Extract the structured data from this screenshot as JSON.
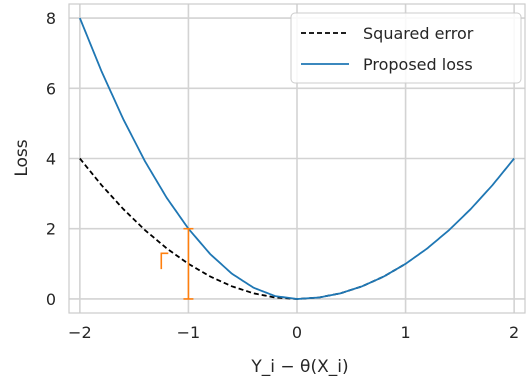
{
  "chart_data": {
    "type": "line",
    "xlabel": "Y_i − θ(X_i)",
    "ylabel": "Loss",
    "xlim": [
      -2.1,
      2.1
    ],
    "ylim": [
      -0.4,
      8.4
    ],
    "xticks": [
      -2,
      -1,
      0,
      1,
      2
    ],
    "xtick_labels": [
      "−2",
      "−1",
      "0",
      "1",
      "2"
    ],
    "yticks": [
      0,
      2,
      4,
      6,
      8
    ],
    "ytick_labels": [
      "0",
      "2",
      "4",
      "6",
      "8"
    ],
    "grid": true,
    "legend_position": "top-right",
    "series": [
      {
        "name": "Squared error",
        "style": "dashed",
        "color": "#000000",
        "x": [
          -2.0,
          -1.8,
          -1.6,
          -1.4,
          -1.2,
          -1.0,
          -0.8,
          -0.6,
          -0.4,
          -0.2,
          0.0,
          0.2,
          0.4,
          0.6,
          0.8,
          1.0
        ],
        "y": [
          4.0,
          3.24,
          2.56,
          1.96,
          1.44,
          1.0,
          0.64,
          0.36,
          0.16,
          0.04,
          0.0,
          0.04,
          0.16,
          0.36,
          0.64,
          1.0
        ]
      },
      {
        "name": "Proposed loss",
        "style": "solid",
        "color": "#1f77b4",
        "x": [
          -2.0,
          -1.8,
          -1.6,
          -1.4,
          -1.2,
          -1.0,
          -0.8,
          -0.6,
          -0.4,
          -0.2,
          0.0,
          0.2,
          0.4,
          0.6,
          0.8,
          1.0,
          1.2,
          1.4,
          1.6,
          1.8,
          2.0
        ],
        "y": [
          8.0,
          6.48,
          5.12,
          3.92,
          2.88,
          2.0,
          1.28,
          0.72,
          0.32,
          0.08,
          0.0,
          0.04,
          0.16,
          0.36,
          0.64,
          1.0,
          1.44,
          1.96,
          2.56,
          3.24,
          4.0
        ]
      }
    ],
    "annotations": [
      {
        "type": "error-bar",
        "x": -1.0,
        "y_low": 0.0,
        "y_high": 2.0,
        "color": "#ff7f0e"
      },
      {
        "type": "bracket",
        "x": -1.25,
        "y_low": 0.85,
        "y_high": 1.3,
        "color": "#ff7f0e"
      }
    ]
  }
}
